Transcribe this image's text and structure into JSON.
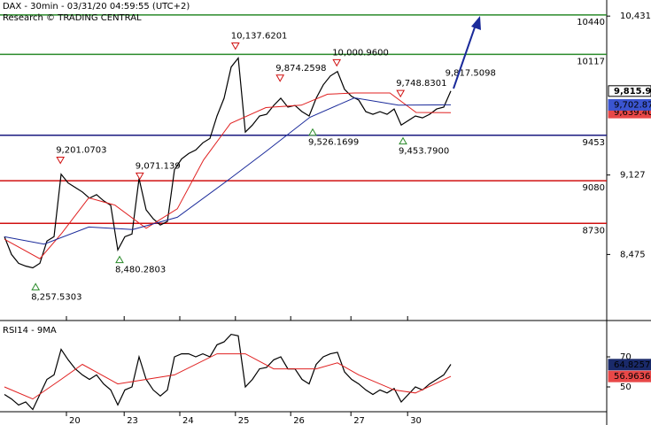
{
  "chart_data": [
    {
      "type": "line",
      "title": "DAX - 30min - 03/31/20 04:59:55 (UTC+2)",
      "subtitle": "Research © TRADING CENTRAL",
      "xlim": [
        0,
        85
      ],
      "ylim": [
        7933,
        10563
      ],
      "yticks": [
        {
          "value": 10431,
          "label": "10,431"
        },
        {
          "value": 9127,
          "label": "9,127"
        },
        {
          "value": 8475,
          "label": "8,475"
        }
      ],
      "series": [
        {
          "color": "#000000",
          "values": [
            8621,
            8475,
            8402,
            8380,
            8365,
            8402,
            8585,
            8621,
            9134,
            9061,
            9024,
            8988,
            8937,
            8966,
            8915,
            8878,
            8512,
            8621,
            8643,
            9098,
            8841,
            8768,
            8716,
            8746,
            9171,
            9259,
            9303,
            9332,
            9391,
            9427,
            9611,
            9757,
            10013,
            10087,
            9479,
            9537,
            9611,
            9625,
            9698,
            9757,
            9684,
            9698,
            9647,
            9611,
            9757,
            9867,
            9940,
            9976,
            9830,
            9772,
            9742,
            9647,
            9625,
            9647,
            9625,
            9669,
            9537,
            9574,
            9611,
            9596,
            9625,
            9669,
            9684,
            9816
          ],
          "last": {
            "value": 9815.97,
            "label": "9,815.97"
          }
        },
        {
          "color": "#e02020",
          "x": [
            0,
            5,
            8.1,
            11.9,
            15.6,
            20,
            24.4,
            28.1,
            31.9,
            36.9,
            41.9,
            45.6,
            49.4,
            54.4,
            58.1,
            63
          ],
          "values": [
            8600,
            8440,
            8650,
            8940,
            8880,
            8690,
            8850,
            9250,
            9550,
            9680,
            9700,
            9790,
            9800,
            9800,
            9640,
            9639
          ],
          "last": {
            "value": 9639.4,
            "label": "9,639.40"
          }
        },
        {
          "color": "#1a2a9a",
          "x": [
            0,
            5.6,
            11.9,
            18.1,
            24.4,
            31.9,
            36.9,
            43.1,
            49.4,
            55.6,
            63
          ],
          "values": [
            8620,
            8560,
            8700,
            8680,
            8780,
            9100,
            9320,
            9600,
            9760,
            9700,
            9703
          ],
          "last": {
            "value": 9702.87,
            "label": "9,702.87"
          }
        }
      ],
      "levels": [
        {
          "value": 10440,
          "color": "#2a8a2a"
        },
        {
          "value": 10117,
          "color": "#2a8a2a"
        },
        {
          "value": 9453,
          "color": "#1a1a80"
        },
        {
          "value": 9080,
          "color": "#d01010"
        },
        {
          "value": 8730,
          "color": "#d01010"
        }
      ],
      "highs": [
        {
          "x": 7.9,
          "value": 9201.0703,
          "label": "9,201.0703"
        },
        {
          "x": 19.1,
          "value": 9071.139,
          "label": "9,071.139"
        },
        {
          "x": 32.6,
          "value": 10137.6201,
          "label": "10,137.6201"
        },
        {
          "x": 38.9,
          "value": 9874.2598,
          "label": "9,874.2598"
        },
        {
          "x": 46.9,
          "value": 10000.96,
          "label": "10,000.9600"
        },
        {
          "x": 55.9,
          "value": 9748.8301,
          "label": "9,748.8301"
        }
      ],
      "lows": [
        {
          "x": 4.4,
          "value": 8257.5303,
          "label": "8,257.5303"
        },
        {
          "x": 16.25,
          "value": 8480.2803,
          "label": "8,480.2803"
        },
        {
          "x": 43.5,
          "value": 9526.1699,
          "label": "9,526.1699"
        },
        {
          "x": 56.25,
          "value": 9453.79,
          "label": "9,453.7900"
        }
      ],
      "annotations": [
        {
          "x": 62.2,
          "value": 9817.5098,
          "label": "9,817.5098"
        }
      ]
    },
    {
      "type": "line",
      "title": "RSI14 - 9MA",
      "xlim": [
        0,
        85
      ],
      "xticks": [
        {
          "value": 8.75,
          "label": "20"
        },
        {
          "value": 16.9,
          "label": "23"
        },
        {
          "value": 24.75,
          "label": "24"
        },
        {
          "value": 32.6,
          "label": "25"
        },
        {
          "value": 40.4,
          "label": "26"
        },
        {
          "value": 48.9,
          "label": "27"
        },
        {
          "value": 56.9,
          "label": "30"
        }
      ],
      "ylim": [
        33.5,
        92.4
      ],
      "yticks": [
        70,
        50
      ],
      "series": [
        {
          "color": "#000000",
          "values": [
            45,
            42,
            38,
            40,
            35,
            45,
            55,
            58,
            75,
            68,
            62,
            58,
            55,
            58,
            52,
            48,
            38,
            48,
            50,
            70,
            55,
            48,
            44,
            48,
            70,
            72,
            72,
            70,
            72,
            70,
            78,
            80,
            85,
            84,
            50,
            55,
            62,
            63,
            68,
            70,
            62,
            62,
            55,
            52,
            65,
            70,
            72,
            73,
            60,
            55,
            52,
            48,
            45,
            48,
            46,
            49,
            40,
            45,
            50,
            48,
            52,
            55,
            58,
            65
          ],
          "last": {
            "value": 64.8257,
            "label": "64.8257"
          }
        },
        {
          "color": "#e02020",
          "x": [
            0,
            4,
            8,
            11,
            16,
            20,
            24,
            30,
            34,
            38,
            44,
            47,
            50,
            55,
            58,
            63
          ],
          "values": [
            50,
            42,
            55,
            65,
            52,
            55,
            58,
            72,
            72,
            62,
            62,
            66,
            58,
            48,
            46,
            57
          ],
          "last": {
            "value": 56.9636,
            "label": "56.9636"
          }
        }
      ]
    }
  ]
}
